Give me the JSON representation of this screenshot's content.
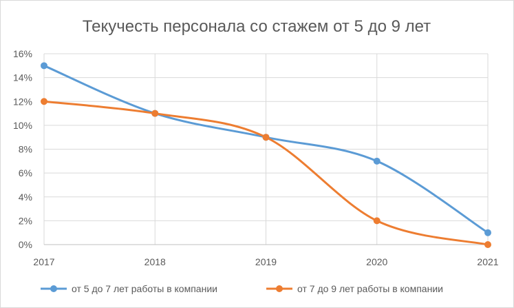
{
  "chart_data": {
    "type": "line",
    "title": "Текучесть персонала со стажем от 5 до 9 лет",
    "xlabel": "",
    "ylabel": "",
    "categories": [
      "2017",
      "2018",
      "2019",
      "2020",
      "2021"
    ],
    "y_ticks": [
      "0%",
      "2%",
      "4%",
      "6%",
      "8%",
      "10%",
      "12%",
      "14%",
      "16%"
    ],
    "ylim": [
      0,
      16
    ],
    "grid": true,
    "smooth": true,
    "legend_position": "bottom",
    "series": [
      {
        "name": "от 5 до 7 лет работы в компании",
        "color": "#5b9bd5",
        "values": [
          15,
          11,
          9,
          7,
          1
        ]
      },
      {
        "name": "от 7 до 9 лет работы в компании",
        "color": "#ed7d31",
        "values": [
          12,
          11,
          9,
          2,
          0
        ]
      }
    ]
  }
}
